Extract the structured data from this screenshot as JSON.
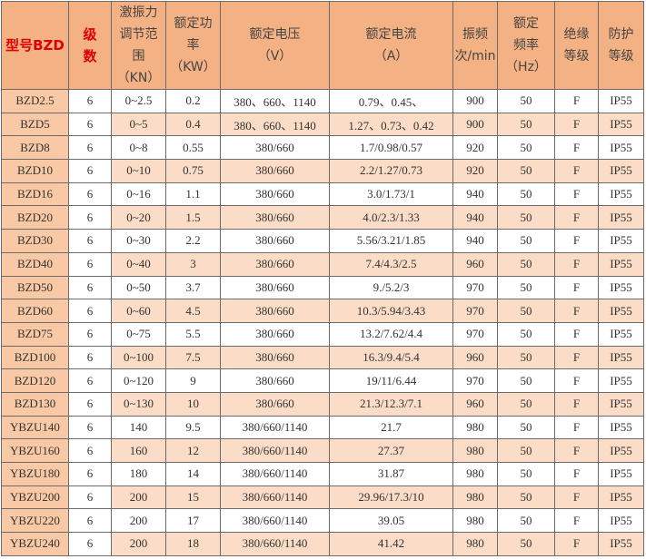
{
  "headers": [
    "型号BZD",
    "级\n数",
    "激振力\n调节范\n围\n（KN）",
    "额定功\n率\n（KW）",
    "额定电压\n（V）",
    "额定电流\n（A）",
    "振频\n次/min",
    "额定\n频率\n（Hz）",
    "绝缘\n等级",
    "防护\n等级"
  ],
  "colors": {
    "header": "#f4b183",
    "model_column": "#f8c9a4",
    "alt_row": "#fbdcc6",
    "header_red_text": "#e00000"
  },
  "rows": [
    [
      "BZD2.5",
      "6",
      "0~2.5",
      "0.2",
      "380、660、1140",
      "0.79、0.45、",
      "900",
      "50",
      "F",
      "IP55"
    ],
    [
      "BZD5",
      "6",
      "0~5",
      "0.4",
      "380、660、1140",
      "1.27、0.73、0.42",
      "900",
      "50",
      "F",
      "IP55"
    ],
    [
      "BZD8",
      "6",
      "0~8",
      "0.55",
      "380/660",
      "1.7/0.98/0.57",
      "920",
      "50",
      "F",
      "IP55"
    ],
    [
      "BZD10",
      "6",
      "0~10",
      "0.75",
      "380/660",
      "2.2/1.27/0.73",
      "920",
      "50",
      "F",
      "IP55"
    ],
    [
      "BZD16",
      "6",
      "0~16",
      "1.1",
      "380/660",
      "3.0/1.73/1",
      "940",
      "50",
      "F",
      "IP55"
    ],
    [
      "BZD20",
      "6",
      "0~20",
      "1.5",
      "380/660",
      "4.0/2.3/1.33",
      "940",
      "50",
      "F",
      "IP55"
    ],
    [
      "BZD30",
      "6",
      "0~30",
      "2.2",
      "380/660",
      "5.56/3.21/1.85",
      "940",
      "50",
      "F",
      "IP55"
    ],
    [
      "BZD40",
      "6",
      "0~40",
      "3",
      "380/660",
      "7.4/4.3/2.5",
      "960",
      "50",
      "F",
      "IP55"
    ],
    [
      "BZD50",
      "6",
      "0~50",
      "3.7",
      "380/660",
      "9./5.2/3",
      "970",
      "50",
      "F",
      "IP55"
    ],
    [
      "BZD60",
      "6",
      "0~60",
      "4.5",
      "380/660",
      "10.3/5.94/3.43",
      "970",
      "50",
      "F",
      "IP55"
    ],
    [
      "BZD75",
      "6",
      "0~75",
      "5.5",
      "380/660",
      "13.2/7.62/4.4",
      "970",
      "50",
      "F",
      "IP55"
    ],
    [
      "BZD100",
      "6",
      "0~100",
      "7.5",
      "380/660",
      "16.3/9.4/5.4",
      "960",
      "50",
      "F",
      "IP55"
    ],
    [
      "BZD120",
      "6",
      "0~120",
      "9",
      "380/660",
      "19/11/6.44",
      "970",
      "50",
      "F",
      "IP55"
    ],
    [
      "BZD130",
      "6",
      "0~130",
      "10",
      "380/660",
      "21.3/12.3/7.1",
      "960",
      "50",
      "F",
      "IP55"
    ],
    [
      "YBZU140",
      "6",
      "140",
      "9.5",
      "380/660/1140",
      "21.7",
      "980",
      "50",
      "F",
      "IP55"
    ],
    [
      "YBZU160",
      "6",
      "160",
      "12",
      "380/660/1140",
      "27.37",
      "980",
      "50",
      "F",
      "IP55"
    ],
    [
      "YBZU180",
      "6",
      "180",
      "14",
      "380/660/1140",
      "31.87",
      "980",
      "50",
      "F",
      "IP55"
    ],
    [
      "YBZU200",
      "6",
      "200",
      "15",
      "380/660/1140",
      "29.96/17.3/10",
      "980",
      "50",
      "F",
      "IP55"
    ],
    [
      "YBZU220",
      "6",
      "200",
      "17",
      "380/660/1140",
      "39.05",
      "980",
      "50",
      "F",
      "IP55"
    ],
    [
      "YBZU240",
      "6",
      "200",
      "18",
      "380/660/1140",
      "41.42",
      "980",
      "50",
      "F",
      "IP55"
    ]
  ]
}
